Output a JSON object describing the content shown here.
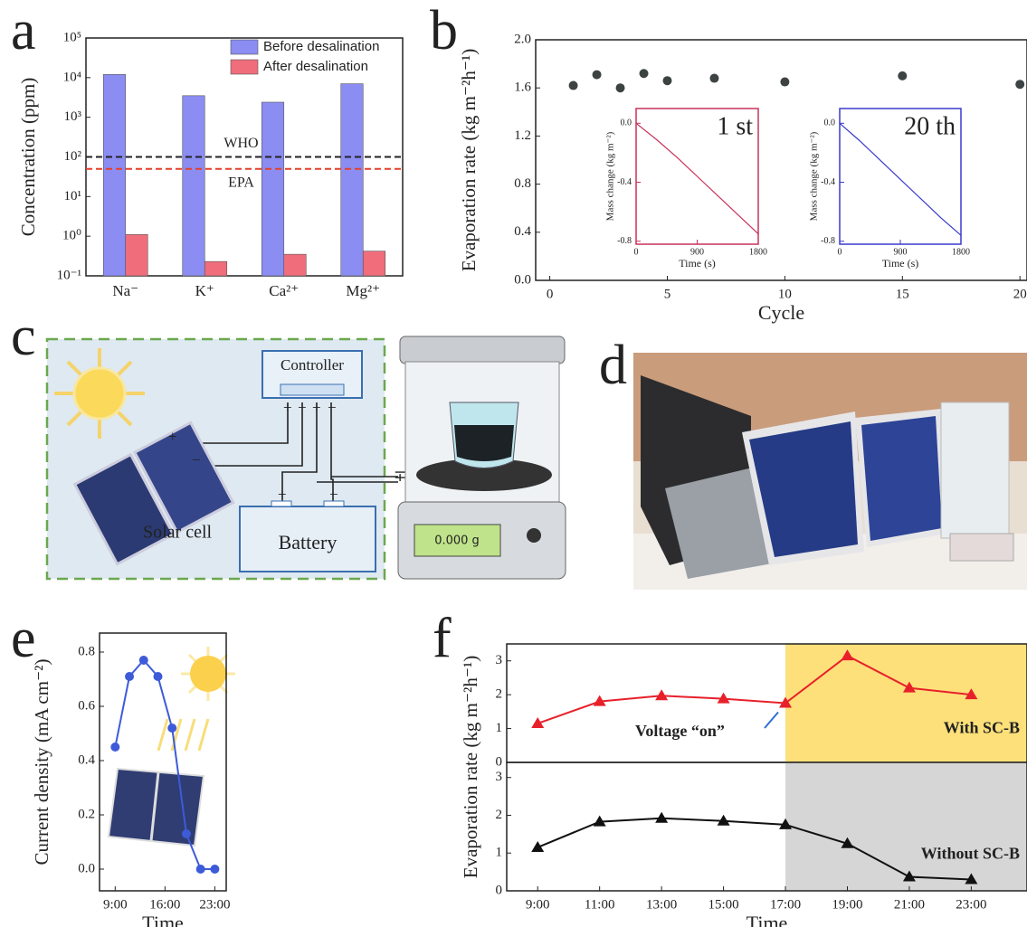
{
  "panels": {
    "labels": [
      "a",
      "b",
      "c",
      "d",
      "e",
      "f"
    ]
  },
  "diagram": {
    "controller": "Controller",
    "solar_cell": "Solar cell",
    "battery": "Battery",
    "balance_reading": "0.000 g",
    "signs": [
      "+",
      "−",
      "+",
      "−",
      "+",
      "−",
      "+",
      "−",
      "∓"
    ]
  },
  "chart_data": [
    {
      "type": "bar",
      "ylabel": "Concentration (ppm)",
      "ylog": true,
      "categories": [
        "Na⁻",
        "K⁺",
        "Ca²⁺",
        "Mg²⁺"
      ],
      "series": [
        {
          "name": "Before desalination",
          "color": "#8b8df2",
          "values": [
            12000,
            3500,
            2400,
            7000
          ]
        },
        {
          "name": "After desalination",
          "color": "#f06d7c",
          "values": [
            1.1,
            0.23,
            0.35,
            0.42
          ]
        }
      ],
      "ylim": [
        0.1,
        100000
      ],
      "yticks": [
        {
          "value": 0.1,
          "label": "10⁻¹"
        },
        {
          "value": 1,
          "label": "10⁰"
        },
        {
          "value": 10,
          "label": "10¹"
        },
        {
          "value": 100,
          "label": "10²"
        },
        {
          "value": 1000,
          "label": "10³"
        },
        {
          "value": 10000,
          "label": "10⁴"
        },
        {
          "value": 100000,
          "label": "10⁵"
        }
      ],
      "reference_lines": [
        {
          "label": "WHO",
          "value": 100,
          "color": "#222222"
        },
        {
          "label": "EPA",
          "value": 50,
          "color": "#e2412a"
        }
      ],
      "legend": "upper right"
    },
    {
      "type": "scatter",
      "xlabel": "Cycle",
      "ylabel": "Evaporation rate (kg m⁻²h⁻¹)",
      "color": "#3d4242",
      "x": [
        1,
        2,
        3,
        4,
        5,
        7,
        10,
        15,
        20
      ],
      "values": [
        1.62,
        1.71,
        1.6,
        1.72,
        1.66,
        1.68,
        1.65,
        1.7,
        1.63
      ],
      "xlim": [
        -0.6,
        20.3
      ],
      "xticks": [
        0,
        5,
        10,
        15,
        20
      ],
      "ylim": [
        0,
        2
      ],
      "yticks": [
        {
          "value": 0,
          "label": "0.0"
        },
        0.4,
        0.8,
        1.2,
        1.6,
        {
          "value": 2,
          "label": "2.0"
        }
      ]
    },
    {
      "type": "line",
      "title": "1 st",
      "title_color": "#d0365c",
      "axis_color": "#c8325a",
      "color": "#c8325a",
      "xlabel": "Time (s)",
      "ylabel": "Mass change (kg m⁻²)",
      "x": [
        0,
        300,
        600,
        900,
        1200,
        1500,
        1800
      ],
      "values": [
        0,
        -0.11,
        -0.23,
        -0.36,
        -0.49,
        -0.62,
        -0.75
      ],
      "xlim": [
        0,
        1800
      ],
      "xticks": [
        0,
        900,
        1800
      ],
      "ylim": [
        -0.82,
        0.1
      ],
      "yticks": [
        {
          "value": 0,
          "label": "0.0"
        },
        -0.4,
        -0.8
      ]
    },
    {
      "type": "line",
      "title": "20 th",
      "title_color": "#4a90c8",
      "axis_color": "#3a3acc",
      "color": "#3a3acc",
      "xlabel": "Time (s)",
      "ylabel": "Mass change (kg m⁻²)",
      "x": [
        0,
        300,
        600,
        900,
        1200,
        1500,
        1800
      ],
      "values": [
        0,
        -0.12,
        -0.25,
        -0.38,
        -0.51,
        -0.64,
        -0.76
      ],
      "xlim": [
        0,
        1800
      ],
      "xticks": [
        0,
        900,
        1800
      ],
      "ylim": [
        -0.82,
        0.1
      ],
      "yticks": [
        {
          "value": 0,
          "label": "0.0"
        },
        -0.4,
        -0.8
      ]
    },
    {
      "type": "line",
      "xlabel": "Time",
      "ylabel": "Current density (mA cm⁻²)",
      "color": "#3d5bd9",
      "marker": "circle",
      "x": [
        9,
        11,
        13,
        15,
        17,
        19,
        21,
        23
      ],
      "values": [
        0.45,
        0.71,
        0.77,
        0.71,
        0.52,
        0.13,
        0,
        0
      ],
      "xlim": [
        6.8,
        24.6
      ],
      "xticks": [
        {
          "value": 9,
          "label": "9:00"
        },
        {
          "value": 16,
          "label": "16:00"
        },
        {
          "value": 23,
          "label": "23:00"
        }
      ],
      "ylim": [
        -0.08,
        0.87
      ],
      "yticks": [
        {
          "value": 0,
          "label": "0.0"
        },
        0.2,
        0.4,
        0.6,
        0.8
      ]
    },
    {
      "type": "line",
      "ylabel": "Evaporation rate (kg m⁻²h⁻¹)",
      "color": "#e8202a",
      "marker": "triangle",
      "x": [
        9,
        11,
        13,
        15,
        17,
        19,
        21,
        23
      ],
      "values": [
        1.15,
        1.8,
        1.97,
        1.88,
        1.75,
        3.15,
        2.2,
        2.0
      ],
      "xlim": [
        8,
        24.8
      ],
      "ylim": [
        0,
        3.5
      ],
      "yticks": [
        0,
        1,
        2,
        3
      ],
      "shade": {
        "from": 17,
        "color": "#fde07a",
        "label": "With SC-B"
      },
      "annotation": "Voltage “on”"
    },
    {
      "type": "line",
      "xlabel": "Time",
      "color": "#111111",
      "marker": "triangle",
      "x": [
        9,
        11,
        13,
        15,
        17,
        19,
        21,
        23
      ],
      "values": [
        1.15,
        1.83,
        1.92,
        1.85,
        1.75,
        1.25,
        0.37,
        0.3
      ],
      "xlim": [
        8,
        24.8
      ],
      "xticks": [
        {
          "value": 9,
          "label": "9:00"
        },
        {
          "value": 11,
          "label": "11:00"
        },
        {
          "value": 13,
          "label": "13:00"
        },
        {
          "value": 15,
          "label": "15:00"
        },
        {
          "value": 17,
          "label": "17:00"
        },
        {
          "value": 19,
          "label": "19:00"
        },
        {
          "value": 21,
          "label": "21:00"
        },
        {
          "value": 23,
          "label": "23:00"
        }
      ],
      "ylim": [
        0,
        3.4
      ],
      "yticks": [
        0,
        1,
        2,
        3
      ],
      "shade": {
        "from": 17,
        "color": "#d6d6d6",
        "label": "Without SC-B"
      }
    }
  ]
}
